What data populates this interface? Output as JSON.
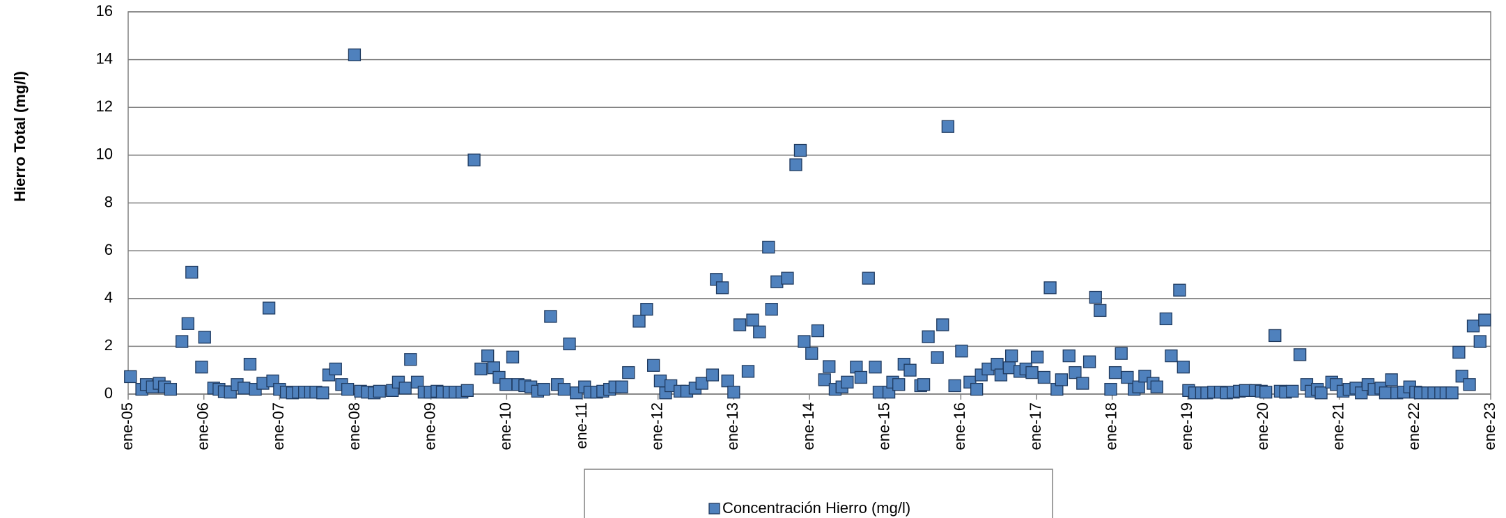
{
  "chart_data": {
    "type": "scatter",
    "y_label": "Hierro Total (mg/l)",
    "x": [
      2005.03,
      2005.18,
      2005.24,
      2005.32,
      2005.41,
      2005.48,
      2005.56,
      2005.71,
      2005.79,
      2005.84,
      2005.97,
      2006.01,
      2006.13,
      2006.2,
      2006.27,
      2006.35,
      2006.44,
      2006.53,
      2006.61,
      2006.68,
      2006.78,
      2006.86,
      2006.91,
      2007.0,
      2007.09,
      2007.17,
      2007.25,
      2007.33,
      2007.41,
      2007.48,
      2007.57,
      2007.65,
      2007.74,
      2007.82,
      2007.9,
      2007.99,
      2008.07,
      2008.16,
      2008.25,
      2008.32,
      2008.49,
      2008.57,
      2008.66,
      2008.73,
      2008.82,
      2008.91,
      2008.99,
      2009.08,
      2009.15,
      2009.24,
      2009.32,
      2009.41,
      2009.48,
      2009.57,
      2009.66,
      2009.75,
      2009.83,
      2009.9,
      2009.99,
      2010.08,
      2010.15,
      2010.24,
      2010.32,
      2010.41,
      2010.49,
      2010.58,
      2010.67,
      2010.76,
      2010.83,
      2010.92,
      2011.03,
      2011.1,
      2011.19,
      2011.27,
      2011.36,
      2011.43,
      2011.52,
      2011.61,
      2011.75,
      2011.85,
      2011.94,
      2012.03,
      2012.1,
      2012.17,
      2012.29,
      2012.38,
      2012.49,
      2012.58,
      2012.72,
      2012.77,
      2012.85,
      2012.92,
      2013.0,
      2013.08,
      2013.19,
      2013.25,
      2013.34,
      2013.46,
      2013.5,
      2013.57,
      2013.71,
      2013.82,
      2013.88,
      2013.93,
      2014.03,
      2014.11,
      2014.2,
      2014.26,
      2014.34,
      2014.43,
      2014.5,
      2014.62,
      2014.68,
      2014.78,
      2014.87,
      2014.92,
      2015.05,
      2015.1,
      2015.18,
      2015.25,
      2015.33,
      2015.47,
      2015.51,
      2015.57,
      2015.69,
      2015.76,
      2015.83,
      2015.92,
      2016.01,
      2016.12,
      2016.21,
      2016.27,
      2016.36,
      2016.48,
      2016.53,
      2016.64,
      2016.67,
      2016.78,
      2016.86,
      2016.94,
      2017.01,
      2017.1,
      2017.18,
      2017.27,
      2017.33,
      2017.43,
      2017.51,
      2017.61,
      2017.7,
      2017.78,
      2017.84,
      2017.98,
      2018.04,
      2018.12,
      2018.2,
      2018.29,
      2018.35,
      2018.43,
      2018.54,
      2018.59,
      2018.71,
      2018.78,
      2018.89,
      2018.94,
      2019.01,
      2019.09,
      2019.18,
      2019.25,
      2019.34,
      2019.43,
      2019.51,
      2019.6,
      2019.68,
      2019.76,
      2019.89,
      2019.97,
      2020.03,
      2020.15,
      2020.22,
      2020.29,
      2020.38,
      2020.48,
      2020.57,
      2020.63,
      2020.71,
      2020.76,
      2020.9,
      2020.96,
      2021.05,
      2021.13,
      2021.22,
      2021.29,
      2021.38,
      2021.46,
      2021.55,
      2021.61,
      2021.69,
      2021.76,
      2021.85,
      2021.93,
      2022.01,
      2022.07,
      2022.17,
      2022.25,
      2022.34,
      2022.41,
      2022.49,
      2022.58,
      2022.62,
      2022.72,
      2022.77,
      2022.86,
      2022.92
    ],
    "series": [
      {
        "name": "Concentración Hierro (mg/l)",
        "color": "#4f81bd",
        "edge_color": "#1f3a5f",
        "values": [
          0.73,
          0.2,
          0.4,
          0.3,
          0.45,
          0.3,
          0.2,
          2.2,
          2.95,
          5.1,
          1.13,
          2.38,
          0.25,
          0.2,
          0.1,
          0.08,
          0.4,
          0.25,
          1.25,
          0.2,
          0.45,
          3.6,
          0.55,
          0.2,
          0.08,
          0.05,
          0.08,
          0.08,
          0.08,
          0.08,
          0.05,
          0.8,
          1.05,
          0.4,
          0.2,
          14.2,
          0.12,
          0.08,
          0.05,
          0.12,
          0.15,
          0.5,
          0.25,
          1.45,
          0.5,
          0.08,
          0.08,
          0.12,
          0.08,
          0.08,
          0.08,
          0.08,
          0.15,
          9.8,
          1.05,
          1.6,
          1.1,
          0.7,
          0.4,
          1.55,
          0.4,
          0.35,
          0.3,
          0.12,
          0.2,
          3.25,
          0.4,
          0.2,
          2.1,
          0.05,
          0.3,
          0.08,
          0.08,
          0.12,
          0.2,
          0.3,
          0.3,
          0.9,
          3.05,
          3.55,
          1.2,
          0.55,
          0.05,
          0.35,
          0.12,
          0.12,
          0.25,
          0.45,
          0.8,
          4.8,
          4.45,
          0.55,
          0.08,
          2.9,
          0.95,
          3.1,
          2.6,
          6.15,
          3.55,
          4.7,
          4.85,
          9.6,
          10.2,
          2.2,
          1.7,
          2.65,
          0.6,
          1.15,
          0.2,
          0.3,
          0.5,
          1.13,
          0.7,
          4.85,
          1.13,
          0.08,
          0.08,
          0.5,
          0.4,
          1.25,
          1.0,
          0.35,
          0.4,
          2.4,
          1.53,
          2.9,
          11.2,
          0.35,
          1.8,
          0.5,
          0.2,
          0.8,
          1.05,
          1.25,
          0.8,
          1.1,
          1.6,
          0.95,
          1.05,
          0.9,
          1.55,
          0.7,
          4.45,
          0.2,
          0.6,
          1.6,
          0.9,
          0.45,
          1.35,
          4.05,
          3.5,
          0.2,
          0.9,
          1.7,
          0.7,
          0.2,
          0.3,
          0.75,
          0.45,
          0.3,
          3.15,
          1.6,
          4.35,
          1.13,
          0.15,
          0.05,
          0.05,
          0.05,
          0.08,
          0.08,
          0.05,
          0.08,
          0.12,
          0.15,
          0.15,
          0.12,
          0.08,
          2.45,
          0.12,
          0.08,
          0.12,
          1.65,
          0.4,
          0.12,
          0.2,
          0.05,
          0.5,
          0.4,
          0.12,
          0.2,
          0.25,
          0.05,
          0.4,
          0.2,
          0.25,
          0.05,
          0.6,
          0.05,
          0.08,
          0.3,
          0.08,
          0.05,
          0.05,
          0.05,
          0.05,
          0.05,
          0.05,
          1.75,
          0.75,
          0.4,
          2.85,
          2.2,
          3.1
        ]
      }
    ],
    "xlim": [
      2005,
      2023
    ],
    "xticks": [
      {
        "value": 2005,
        "label": "ene-05"
      },
      {
        "value": 2006,
        "label": "ene-06"
      },
      {
        "value": 2007,
        "label": "ene-07"
      },
      {
        "value": 2008,
        "label": "ene-08"
      },
      {
        "value": 2009,
        "label": "ene-09"
      },
      {
        "value": 2010,
        "label": "ene-10"
      },
      {
        "value": 2011,
        "label": "ene-11"
      },
      {
        "value": 2012,
        "label": "ene-12"
      },
      {
        "value": 2013,
        "label": "ene-13"
      },
      {
        "value": 2014,
        "label": "ene-14"
      },
      {
        "value": 2015,
        "label": "ene-15"
      },
      {
        "value": 2016,
        "label": "ene-16"
      },
      {
        "value": 2017,
        "label": "ene-17"
      },
      {
        "value": 2018,
        "label": "ene-18"
      },
      {
        "value": 2019,
        "label": "ene-19"
      },
      {
        "value": 2020,
        "label": "ene-20"
      },
      {
        "value": 2021,
        "label": "ene-21"
      },
      {
        "value": 2022,
        "label": "ene-22"
      },
      {
        "value": 2023,
        "label": "ene-23"
      }
    ],
    "ylim": [
      0,
      16
    ],
    "yticks": [
      0,
      2,
      4,
      6,
      8,
      10,
      12,
      14,
      16
    ],
    "grid": true,
    "legend": "bottom"
  }
}
